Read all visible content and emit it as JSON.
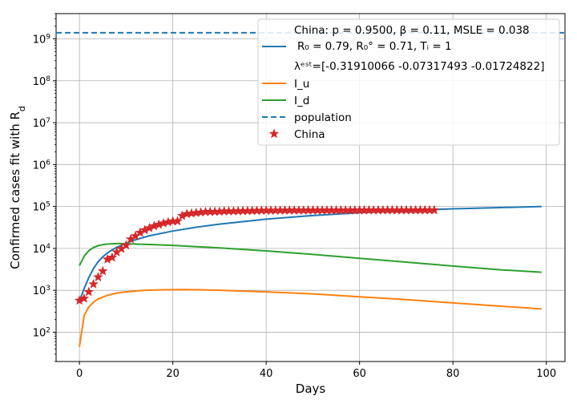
{
  "chart_data": {
    "type": "line",
    "xlabel": "Days",
    "ylabel_main": "Confirmed cases fit with R",
    "ylabel_sub": "d",
    "xlim": [
      -5,
      104
    ],
    "ylim": [
      20,
      4000000000
    ],
    "y_scale": "log",
    "grid": true,
    "x_ticks": [
      0,
      20,
      40,
      60,
      80,
      100
    ],
    "y_ticks": [
      {
        "value": 100,
        "base": "10",
        "exp": "2"
      },
      {
        "value": 1000,
        "base": "10",
        "exp": "3"
      },
      {
        "value": 10000,
        "base": "10",
        "exp": "4"
      },
      {
        "value": 100000,
        "base": "10",
        "exp": "5"
      },
      {
        "value": 1000000,
        "base": "10",
        "exp": "6"
      },
      {
        "value": 10000000,
        "base": "10",
        "exp": "7"
      },
      {
        "value": 100000000,
        "base": "10",
        "exp": "8"
      },
      {
        "value": 1000000000,
        "base": "10",
        "exp": "9"
      }
    ],
    "legend_position": "top-right",
    "legend": {
      "line1": "China: p = 0.9500,  β =  0.11, MSLE = 0.038",
      "line2": "R₀ = 0.79, R₀° = 0.71, Tᵢ = 1",
      "line3": "λᵉˢᵗ=[-0.31910066 -0.07317493 -0.01724822]",
      "i_u": "I_u",
      "i_d": "I_d",
      "population": "population",
      "china": "China"
    },
    "colors": {
      "fit": "#1f77b4",
      "i_u": "#ff7f0e",
      "i_d": "#2ca02c",
      "population": "#1f77b4",
      "china": "#d62728"
    },
    "population": 1400000000,
    "series": [
      {
        "key": "fit",
        "x": [
          0,
          1,
          2,
          3,
          4,
          5,
          6,
          7,
          8,
          10,
          12,
          15,
          20,
          25,
          30,
          40,
          50,
          60,
          70,
          80,
          90,
          99
        ],
        "y": [
          550,
          1100,
          2000,
          3300,
          4800,
          6300,
          7800,
          9200,
          10600,
          13300,
          16000,
          20000,
          26000,
          32000,
          38000,
          50000,
          61000,
          71000,
          80000,
          88000,
          94000,
          100000
        ]
      },
      {
        "key": "i_u",
        "name": "I_u",
        "x": [
          0,
          1,
          2,
          3,
          4,
          6,
          8,
          10,
          14,
          18,
          22,
          26,
          30,
          40,
          50,
          60,
          70,
          80,
          90,
          99
        ],
        "y": [
          45,
          250,
          400,
          520,
          620,
          760,
          860,
          920,
          1000,
          1030,
          1040,
          1030,
          1000,
          920,
          820,
          700,
          600,
          500,
          420,
          360
        ]
      },
      {
        "key": "i_d",
        "name": "I_d",
        "x": [
          0,
          1,
          2,
          3,
          4,
          5,
          6,
          7,
          8,
          9,
          10,
          12,
          15,
          20,
          30,
          40,
          50,
          60,
          70,
          80,
          90,
          99
        ],
        "y": [
          3900,
          6500,
          8800,
          10500,
          11600,
          12300,
          12700,
          12900,
          13000,
          13000,
          12900,
          12700,
          12400,
          11800,
          10300,
          8700,
          7200,
          5800,
          4700,
          3800,
          3100,
          2700
        ]
      }
    ],
    "china_points": {
      "x": [
        0,
        1,
        2,
        3,
        4,
        5,
        6,
        7,
        8,
        9,
        10,
        11,
        12,
        13,
        14,
        15,
        16,
        17,
        18,
        19,
        20,
        21,
        22,
        23,
        24,
        25,
        26,
        27,
        28,
        29,
        30,
        31,
        32,
        33,
        34,
        35,
        36,
        37,
        38,
        39,
        40,
        41,
        42,
        43,
        44,
        45,
        46,
        47,
        48,
        49,
        50,
        51,
        52,
        53,
        54,
        55,
        56,
        57,
        58,
        59,
        60,
        61,
        62,
        63,
        64,
        65,
        66,
        67,
        68,
        69,
        70,
        71,
        72,
        73,
        74,
        75,
        76
      ],
      "y": [
        571,
        639,
        916,
        1399,
        2062,
        2863,
        5494,
        6070,
        8124,
        9783,
        11871,
        16607,
        19693,
        23680,
        27409,
        30553,
        34075,
        36778,
        39790,
        42306,
        44327,
        44699,
        59832,
        66292,
        68347,
        70446,
        72364,
        74139,
        74546,
        74999,
        75472,
        76922,
        76938,
        77152,
        77660,
        78065,
        78498,
        78824,
        79251,
        79826,
        80026,
        80151,
        80270,
        80409,
        80552,
        80651,
        80695,
        80735,
        80754,
        80778,
        80793,
        80813,
        80824,
        80844,
        80860,
        80881,
        80894,
        80928,
        80967,
        81008,
        81054,
        81093,
        81171,
        81218,
        81285,
        81340,
        81394,
        81439,
        81470,
        81518,
        81554,
        81589,
        81620,
        81639,
        81669,
        81708,
        81740
      ]
    }
  }
}
